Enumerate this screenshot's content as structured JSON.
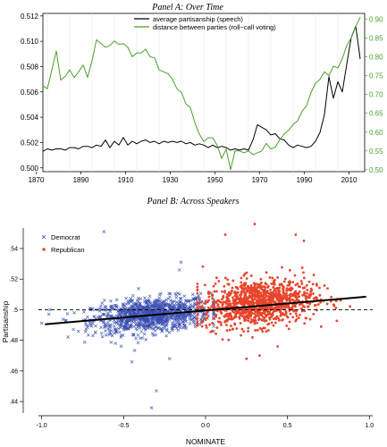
{
  "colors": {
    "black": "#000000",
    "green": "#4aa02c",
    "democrat": "#3a4fb0",
    "republican": "#e8452c",
    "grid": "#e6e6e6"
  },
  "chart_data": [
    {
      "type": "line",
      "title": "Panel A: Over Time",
      "xlim": [
        1873,
        2017
      ],
      "x_ticks": [
        1870,
        1890,
        1910,
        1930,
        1950,
        1970,
        1990,
        2010
      ],
      "left_ylim": [
        0.4997,
        0.5122
      ],
      "left_ticks": [
        "0.500",
        "0.502",
        "0.504",
        "0.506",
        "0.508",
        "0.510",
        "0.512"
      ],
      "right_ylim": [
        0.495,
        0.915
      ],
      "right_ticks": [
        "0.50",
        "0.55",
        "0.60",
        "0.65",
        "0.70",
        "0.75",
        "0.80",
        "0.85",
        "0.90"
      ],
      "legend": [
        "average partisanship (speech)",
        "distance between parties (roll−call voting)"
      ],
      "series": [
        {
          "name": "average partisanship (speech)",
          "axis": "left",
          "x": [
            1873,
            1875,
            1877,
            1879,
            1881,
            1883,
            1885,
            1887,
            1889,
            1891,
            1893,
            1895,
            1897,
            1899,
            1901,
            1903,
            1905,
            1907,
            1909,
            1911,
            1913,
            1915,
            1917,
            1919,
            1921,
            1923,
            1925,
            1927,
            1929,
            1931,
            1933,
            1935,
            1937,
            1939,
            1941,
            1943,
            1945,
            1947,
            1949,
            1951,
            1953,
            1955,
            1957,
            1959,
            1961,
            1963,
            1965,
            1967,
            1969,
            1971,
            1973,
            1975,
            1977,
            1979,
            1981,
            1983,
            1985,
            1987,
            1989,
            1991,
            1993,
            1995,
            1997,
            1999,
            2001,
            2003,
            2005,
            2007,
            2009,
            2011,
            2013,
            2015
          ],
          "y": [
            0.5013,
            0.5015,
            0.5014,
            0.5015,
            0.5015,
            0.5014,
            0.5016,
            0.5016,
            0.5015,
            0.5017,
            0.5017,
            0.5016,
            0.5018,
            0.5017,
            0.5022,
            0.5016,
            0.5021,
            0.5018,
            0.5024,
            0.5018,
            0.5021,
            0.5019,
            0.5021,
            0.5022,
            0.502,
            0.5021,
            0.5019,
            0.5021,
            0.502,
            0.5021,
            0.502,
            0.5021,
            0.5019,
            0.502,
            0.5018,
            0.5019,
            0.5018,
            0.5016,
            0.5018,
            0.5016,
            0.5017,
            0.5016,
            0.5014,
            0.5015,
            0.5014,
            0.5015,
            0.5014,
            0.5022,
            0.5034,
            0.5032,
            0.503,
            0.5026,
            0.5027,
            0.5023,
            0.5022,
            0.5018,
            0.5016,
            0.5018,
            0.5017,
            0.5016,
            0.5017,
            0.5021,
            0.5028,
            0.5042,
            0.5072,
            0.5055,
            0.5068,
            0.506,
            0.5082,
            0.5103,
            0.5112,
            0.5086
          ]
        },
        {
          "name": "distance between parties (roll−call voting)",
          "axis": "right",
          "x": [
            1873,
            1875,
            1877,
            1879,
            1881,
            1883,
            1885,
            1887,
            1889,
            1891,
            1893,
            1895,
            1897,
            1899,
            1901,
            1903,
            1905,
            1907,
            1909,
            1911,
            1913,
            1915,
            1917,
            1919,
            1921,
            1923,
            1925,
            1927,
            1929,
            1931,
            1933,
            1935,
            1937,
            1939,
            1941,
            1943,
            1945,
            1947,
            1949,
            1951,
            1953,
            1955,
            1957,
            1959,
            1961,
            1963,
            1965,
            1967,
            1969,
            1971,
            1973,
            1975,
            1977,
            1979,
            1981,
            1983,
            1985,
            1987,
            1989,
            1991,
            1993,
            1995,
            1997,
            1999,
            2001,
            2003,
            2005,
            2007,
            2009,
            2011,
            2013,
            2015
          ],
          "y": [
            0.723,
            0.715,
            0.765,
            0.815,
            0.738,
            0.748,
            0.765,
            0.745,
            0.76,
            0.778,
            0.745,
            0.79,
            0.845,
            0.835,
            0.825,
            0.83,
            0.842,
            0.833,
            0.835,
            0.825,
            0.8,
            0.81,
            0.81,
            0.82,
            0.8,
            0.797,
            0.765,
            0.76,
            0.755,
            0.74,
            0.715,
            0.705,
            0.675,
            0.665,
            0.625,
            0.595,
            0.575,
            0.585,
            0.585,
            0.565,
            0.53,
            0.555,
            0.5,
            0.55,
            0.55,
            0.545,
            0.55,
            0.54,
            0.545,
            0.55,
            0.57,
            0.555,
            0.56,
            0.58,
            0.595,
            0.605,
            0.62,
            0.63,
            0.655,
            0.67,
            0.705,
            0.73,
            0.74,
            0.76,
            0.75,
            0.775,
            0.77,
            0.795,
            0.83,
            0.85,
            0.88,
            0.905
          ]
        }
      ]
    },
    {
      "type": "scatter",
      "title": "Panel B: Across Speakers",
      "xlabel": "NOMINATE",
      "ylabel": "Partisanship",
      "xlim": [
        -1.02,
        1.02
      ],
      "ylim": [
        0.4325,
        0.5575
      ],
      "x_ticks": [
        "-1.0",
        "-0.5",
        "0.0",
        "0.5",
        "1.0"
      ],
      "y_ticks": [
        ".44",
        ".46",
        ".48",
        ".5",
        ".52",
        ".54"
      ],
      "legend": [
        "Democrat",
        "Republican"
      ],
      "legend_placement": "top-left",
      "reference_line": 0.5,
      "fit_line": {
        "x": [
          -0.98,
          0.98
        ],
        "y": [
          0.4905,
          0.5085
        ]
      },
      "series": [
        {
          "name": "Democrat",
          "marker": "x",
          "n": 1100,
          "x_mean": -0.33,
          "x_sd": 0.18,
          "x_range": [
            -1.0,
            0.05
          ],
          "y_mean": 0.4965,
          "y_sd": 0.0055,
          "outliers": [
            [
              -0.33,
              0.436
            ],
            [
              -0.3,
              0.447
            ],
            [
              -0.22,
              0.468
            ],
            [
              -0.15,
              0.531
            ],
            [
              -0.16,
              0.526
            ],
            [
              -0.62,
              0.551
            ],
            [
              -0.55,
              0.478
            ],
            [
              -0.45,
              0.466
            ],
            [
              -0.95,
              0.5
            ]
          ]
        },
        {
          "name": "Republican",
          "marker": "dot",
          "n": 1100,
          "x_mean": 0.32,
          "x_sd": 0.17,
          "x_range": [
            -0.05,
            0.95
          ],
          "y_mean": 0.5045,
          "y_sd": 0.0075,
          "outliers": [
            [
              0.3,
              0.556
            ],
            [
              0.12,
              0.549
            ],
            [
              0.55,
              0.549
            ],
            [
              0.44,
              0.476
            ],
            [
              0.33,
              0.47
            ],
            [
              0.25,
              0.468
            ],
            [
              0.6,
              0.545
            ],
            [
              -0.02,
              0.5
            ]
          ]
        }
      ]
    }
  ]
}
